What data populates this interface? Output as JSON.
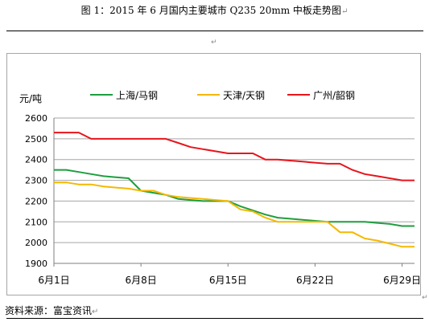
{
  "caption": "图 1：2015 年 6 月国内主要城市 Q235 20mm 中板走势图",
  "caption_mark": "↵",
  "small_mark": "↵",
  "footer": "资料来源：富宝资讯",
  "footer_mark": "↵",
  "chart_data": {
    "type": "line",
    "ylabel": "元/吨",
    "ylim": [
      1900,
      2600
    ],
    "yticks": [
      1900,
      2000,
      2100,
      2200,
      2300,
      2400,
      2500,
      2600
    ],
    "x_range": [
      1,
      30
    ],
    "xticks": [
      {
        "day": 1,
        "label": "6月1日"
      },
      {
        "day": 8,
        "label": "6月8日"
      },
      {
        "day": 15,
        "label": "6月15日"
      },
      {
        "day": 22,
        "label": "6月22日"
      },
      {
        "day": 29,
        "label": "6月29日"
      }
    ],
    "grid": true,
    "legend_position": "top",
    "series": [
      {
        "name": "上海/马钢",
        "color": "#1e9e3e",
        "points": [
          [
            1,
            2350
          ],
          [
            2,
            2350
          ],
          [
            3,
            2340
          ],
          [
            4,
            2330
          ],
          [
            5,
            2320
          ],
          [
            6,
            2315
          ],
          [
            7,
            2310
          ],
          [
            8,
            2250
          ],
          [
            9,
            2240
          ],
          [
            10,
            2230
          ],
          [
            11,
            2210
          ],
          [
            12,
            2205
          ],
          [
            13,
            2200
          ],
          [
            14,
            2200
          ],
          [
            15,
            2200
          ],
          [
            16,
            2175
          ],
          [
            17,
            2155
          ],
          [
            18,
            2135
          ],
          [
            19,
            2120
          ],
          [
            20,
            2115
          ],
          [
            21,
            2110
          ],
          [
            22,
            2105
          ],
          [
            23,
            2100
          ],
          [
            24,
            2100
          ],
          [
            25,
            2100
          ],
          [
            26,
            2100
          ],
          [
            27,
            2095
          ],
          [
            28,
            2090
          ],
          [
            29,
            2080
          ],
          [
            30,
            2080
          ]
        ]
      },
      {
        "name": "天津/天钢",
        "color": "#f5b800",
        "points": [
          [
            1,
            2290
          ],
          [
            2,
            2290
          ],
          [
            3,
            2280
          ],
          [
            4,
            2280
          ],
          [
            5,
            2270
          ],
          [
            6,
            2265
          ],
          [
            7,
            2260
          ],
          [
            8,
            2250
          ],
          [
            9,
            2250
          ],
          [
            10,
            2230
          ],
          [
            11,
            2220
          ],
          [
            12,
            2215
          ],
          [
            13,
            2210
          ],
          [
            14,
            2205
          ],
          [
            15,
            2200
          ],
          [
            16,
            2160
          ],
          [
            17,
            2150
          ],
          [
            18,
            2120
          ],
          [
            19,
            2100
          ],
          [
            20,
            2100
          ],
          [
            21,
            2100
          ],
          [
            22,
            2100
          ],
          [
            23,
            2100
          ],
          [
            24,
            2050
          ],
          [
            25,
            2050
          ],
          [
            26,
            2020
          ],
          [
            27,
            2010
          ],
          [
            28,
            1995
          ],
          [
            29,
            1980
          ],
          [
            30,
            1980
          ]
        ]
      },
      {
        "name": "广州/韶钢",
        "color": "#e8141c",
        "points": [
          [
            1,
            2530
          ],
          [
            2,
            2530
          ],
          [
            3,
            2530
          ],
          [
            4,
            2500
          ],
          [
            5,
            2500
          ],
          [
            6,
            2500
          ],
          [
            7,
            2500
          ],
          [
            8,
            2500
          ],
          [
            9,
            2500
          ],
          [
            10,
            2500
          ],
          [
            11,
            2480
          ],
          [
            12,
            2460
          ],
          [
            13,
            2450
          ],
          [
            14,
            2440
          ],
          [
            15,
            2430
          ],
          [
            16,
            2430
          ],
          [
            17,
            2430
          ],
          [
            18,
            2400
          ],
          [
            19,
            2400
          ],
          [
            20,
            2395
          ],
          [
            21,
            2390
          ],
          [
            22,
            2385
          ],
          [
            23,
            2380
          ],
          [
            24,
            2380
          ],
          [
            25,
            2350
          ],
          [
            26,
            2330
          ],
          [
            27,
            2320
          ],
          [
            28,
            2310
          ],
          [
            29,
            2300
          ],
          [
            30,
            2300
          ]
        ]
      }
    ]
  }
}
